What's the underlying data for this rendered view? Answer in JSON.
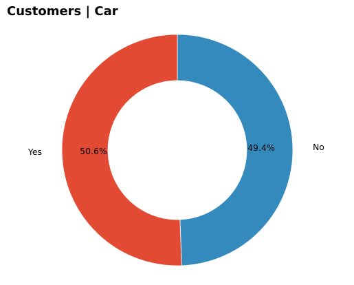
{
  "chart_data": {
    "type": "pie",
    "title": "Customers | Car",
    "donut": true,
    "start_angle_deg": 90,
    "direction": "clockwise",
    "slices": [
      {
        "label": "No",
        "value": 49.4,
        "pct_label": "49.4%",
        "color": "#348abd"
      },
      {
        "label": "Yes",
        "value": 50.6,
        "pct_label": "50.6%",
        "color": "#e24a33"
      }
    ]
  }
}
